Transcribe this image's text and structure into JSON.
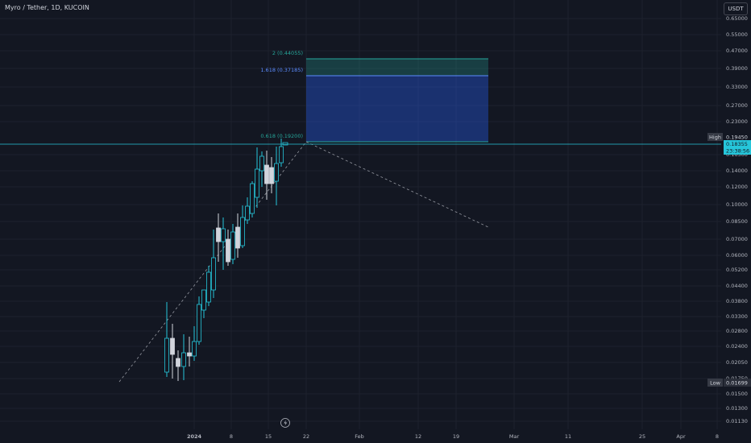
{
  "header": {
    "title": "Myro / Tether, 1D, KUCOIN",
    "currency": "USDT"
  },
  "price_axis": {
    "ticks": [
      "0.65000",
      "0.55000",
      "0.47000",
      "0.39000",
      "0.33000",
      "0.27000",
      "0.23000",
      "0.16500",
      "0.14000",
      "0.12000",
      "0.10000",
      "0.08500",
      "0.07000",
      "0.06000",
      "0.05200",
      "0.04400",
      "0.03800",
      "0.03300",
      "0.02800",
      "0.02400",
      "0.02050",
      "0.01750",
      "0.01500",
      "0.01300",
      "0.01130"
    ],
    "high_label": "High",
    "high_value": "0.19450",
    "low_label": "Low",
    "low_value": "0.01699",
    "current_price": "0.18355",
    "countdown": "23:38:56"
  },
  "time_axis": {
    "ticks": [
      "2024",
      "8",
      "15",
      "22",
      "Feb",
      "12",
      "19",
      "Mar",
      "11",
      "25",
      "Apr",
      "8"
    ]
  },
  "fib": {
    "level_2": "2 (0.44055)",
    "level_1618": "1.618 (0.37185)",
    "level_0618": "0.618 (0.19200)"
  },
  "colors": {
    "background": "#131722",
    "candle_up": "#26c6da",
    "candle_down": "#d1d4dc",
    "fib_green": "#26a69a",
    "fib_blue": "#2962ff",
    "price_line": "#26c6da"
  }
}
